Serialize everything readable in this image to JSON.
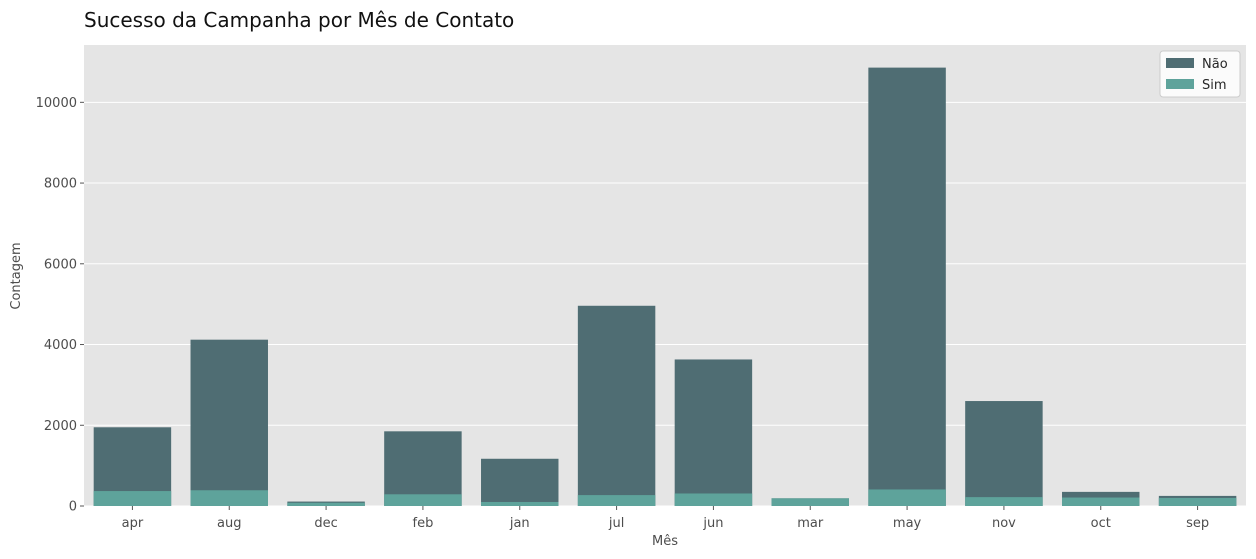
{
  "chart_data": {
    "type": "bar",
    "stacking": "overlaid",
    "title": "Sucesso da Campanha por Mês de Contato",
    "xlabel": "Mês",
    "ylabel": "Contagem",
    "categories": [
      "apr",
      "aug",
      "dec",
      "feb",
      "jan",
      "jul",
      "jun",
      "mar",
      "may",
      "nov",
      "oct",
      "sep"
    ],
    "series": [
      {
        "name": "Não",
        "color": "#4f6d73",
        "values": [
          1950,
          4120,
          110,
          1850,
          1170,
          4960,
          3630,
          190,
          10860,
          2600,
          350,
          250
        ]
      },
      {
        "name": "Sim",
        "color": "#5ea39b",
        "values": [
          370,
          390,
          80,
          290,
          100,
          270,
          310,
          190,
          410,
          220,
          210,
          200
        ]
      }
    ],
    "ylim": [
      0,
      11420
    ],
    "yticks": [
      0,
      2000,
      4000,
      6000,
      8000,
      10000
    ],
    "grid": true,
    "legend": "top-right",
    "background": "#e5e5e5"
  }
}
